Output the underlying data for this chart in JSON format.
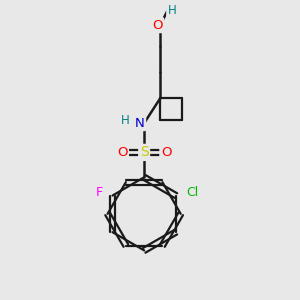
{
  "background_color": "#e8e8e8",
  "bond_color": "#1a1a1a",
  "atom_colors": {
    "O": "#ff0000",
    "N": "#0000cc",
    "S": "#cccc00",
    "F": "#ff00ff",
    "Cl": "#00bb00",
    "H": "#008080",
    "C": "#1a1a1a"
  },
  "figsize": [
    3.0,
    3.0
  ],
  "dpi": 100
}
